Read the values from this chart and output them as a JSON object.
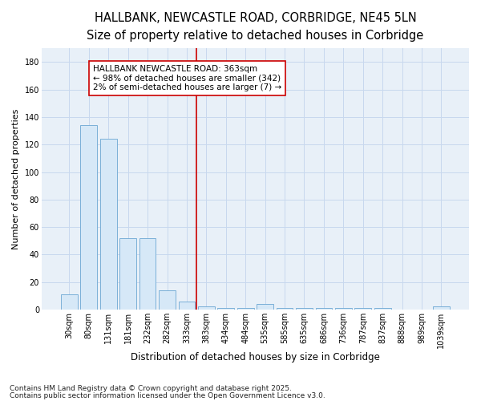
{
  "title": "HALLBANK, NEWCASTLE ROAD, CORBRIDGE, NE45 5LN",
  "subtitle": "Size of property relative to detached houses in Corbridge",
  "xlabel": "Distribution of detached houses by size in Corbridge",
  "ylabel": "Number of detached properties",
  "categories": [
    "30sqm",
    "80sqm",
    "131sqm",
    "181sqm",
    "232sqm",
    "282sqm",
    "333sqm",
    "383sqm",
    "434sqm",
    "484sqm",
    "535sqm",
    "585sqm",
    "635sqm",
    "686sqm",
    "736sqm",
    "787sqm",
    "837sqm",
    "888sqm",
    "989sqm",
    "1039sqm"
  ],
  "values": [
    11,
    134,
    124,
    52,
    52,
    14,
    6,
    2,
    1,
    1,
    4,
    1,
    1,
    1,
    1,
    1,
    1,
    0,
    0,
    2
  ],
  "bar_color": "#d6e8f7",
  "bar_edge_color": "#7ab0d8",
  "grid_color": "#c8d8ee",
  "bg_color": "#ffffff",
  "plot_bg_color": "#e8f0f8",
  "red_line_x": 7,
  "red_line_color": "#cc0000",
  "annotation_text": "HALLBANK NEWCASTLE ROAD: 363sqm\n← 98% of detached houses are smaller (342)\n2% of semi-detached houses are larger (7) →",
  "annotation_box_color": "#ffffff",
  "annotation_border_color": "#cc0000",
  "footer1": "Contains HM Land Registry data © Crown copyright and database right 2025.",
  "footer2": "Contains public sector information licensed under the Open Government Licence v3.0.",
  "ylim": [
    0,
    190
  ],
  "yticks": [
    0,
    20,
    40,
    60,
    80,
    100,
    120,
    140,
    160,
    180
  ],
  "title_fontsize": 10.5,
  "subtitle_fontsize": 9.5,
  "xlabel_fontsize": 8.5,
  "ylabel_fontsize": 8,
  "tick_fontsize": 7,
  "annotation_fontsize": 7.5,
  "footer_fontsize": 6.5
}
